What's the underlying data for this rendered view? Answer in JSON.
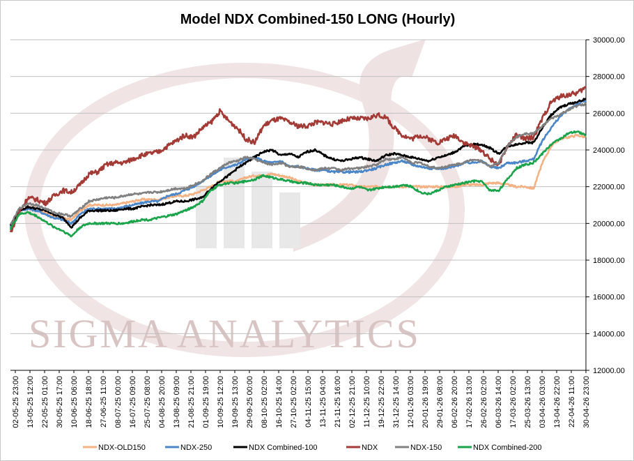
{
  "chart_data": {
    "type": "line",
    "title": "Model NDX Combined-150 LONG (Hourly)",
    "watermark": "Sigma Analytics",
    "ylim": [
      12000,
      30000
    ],
    "y_ticks": [
      "12000.00",
      "14000.00",
      "16000.00",
      "18000.00",
      "20000.00",
      "22000.00",
      "24000.00",
      "26000.00",
      "28000.00",
      "30000.00"
    ],
    "x_ticks": [
      "02-05-25 23:00",
      "13-05-25 12:00",
      "22-05-25 01:00",
      "30-05-25 17:00",
      "10-06-25 06:00",
      "18-06-25 18:00",
      "27-06-25 11:00",
      "08-07-25 00:00",
      "16-07-25 09:00",
      "25-07-25 08:00",
      "04-08-25 20:00",
      "13-08-25 09:00",
      "21-08-25 21:00",
      "01-09-25 19:00",
      "10-09-25 12:00",
      "19-09-25 13:00",
      "29-09-25 00:00",
      "08-10-25 02:00",
      "16-10-25 14:00",
      "27-10-25 02:00",
      "04-11-25 15:00",
      "13-11-25 04:00",
      "21-11-25 16:00",
      "02-12-25 21:00",
      "11-12-25 10:00",
      "19-12-25 22:00",
      "31-12-25 14:00",
      "12-01-26 03:00",
      "20-01-26 19:00",
      "29-01-26 08:00",
      "06-02-26 20:00",
      "17-02-26 13:00",
      "26-02-26 02:00",
      "06-03-26 14:00",
      "17-03-26 02:00",
      "25-03-26 13:00",
      "03-04-26 03:00",
      "13-04-26 22:00",
      "22-04-26 11:00",
      "30-04-26 23:00"
    ],
    "series": [
      {
        "name": "NDX-OLD150",
        "color": "#f4b183",
        "values": [
          19900,
          20700,
          20900,
          20800,
          20600,
          20400,
          20300,
          20200,
          20700,
          21000,
          21000,
          21000,
          21000,
          21100,
          21200,
          21300,
          21300,
          21300,
          21400,
          21500,
          21500,
          21600,
          21800,
          22000,
          22300,
          22300,
          22300,
          22500,
          22600,
          22600,
          22700,
          22600,
          22500,
          22300,
          22200,
          22100,
          22100,
          22100,
          22100,
          22100,
          22000,
          22000,
          22000,
          22000,
          22000,
          22000,
          22000,
          22000,
          22000,
          22000,
          22000,
          22000,
          22100,
          22100,
          22100,
          22200,
          22200,
          22100,
          22000,
          22000,
          21900,
          23300,
          24200,
          24600,
          24700,
          24800,
          24700
        ]
      },
      {
        "name": "NDX-250",
        "color": "#4a86c8",
        "values": [
          19800,
          20700,
          20800,
          20700,
          20500,
          20300,
          20200,
          20000,
          20500,
          20800,
          20800,
          20800,
          20800,
          20900,
          21000,
          21100,
          21200,
          21200,
          21500,
          21600,
          21800,
          22000,
          22300,
          22600,
          22900,
          23100,
          23200,
          23500,
          23600,
          23400,
          23300,
          23400,
          23100,
          23100,
          23000,
          22900,
          22900,
          22800,
          22800,
          22800,
          22800,
          22900,
          23000,
          23200,
          23300,
          23400,
          23200,
          23100,
          23000,
          23000,
          23000,
          23100,
          23300,
          23300,
          23400,
          23100,
          23000,
          23300,
          23300,
          23400,
          23500,
          24500,
          25200,
          25800,
          26200,
          26500,
          26700
        ]
      },
      {
        "name": "NDX Combined-100",
        "color": "#000000",
        "values": [
          19900,
          20700,
          20900,
          20800,
          20700,
          20500,
          20300,
          19800,
          20300,
          20700,
          20700,
          20700,
          20700,
          20800,
          20800,
          20900,
          21000,
          21000,
          21100,
          21200,
          21200,
          21300,
          21400,
          21900,
          22300,
          22600,
          23000,
          23300,
          23600,
          23900,
          24000,
          23700,
          23800,
          23600,
          23900,
          24000,
          23700,
          23500,
          23400,
          23500,
          23600,
          23500,
          23400,
          23700,
          23800,
          23700,
          23600,
          23500,
          23400,
          23600,
          23700,
          23900,
          24200,
          24300,
          24300,
          24100,
          23800,
          24200,
          24300,
          24400,
          24400,
          25200,
          25900,
          26300,
          26500,
          26600,
          26800
        ]
      },
      {
        "name": "NDX",
        "color": "#a33a35",
        "values": [
          19500,
          20600,
          21400,
          21300,
          21100,
          21500,
          21800,
          21700,
          22100,
          22700,
          22800,
          23200,
          23300,
          23300,
          23500,
          23700,
          23800,
          23900,
          24200,
          24500,
          24800,
          24700,
          25200,
          25500,
          26100,
          25600,
          25200,
          24600,
          24400,
          25300,
          25600,
          25700,
          25500,
          25300,
          25300,
          25500,
          25500,
          25400,
          25600,
          25700,
          25700,
          25700,
          25900,
          25800,
          25200,
          24800,
          24600,
          24800,
          24600,
          24400,
          24600,
          24800,
          24400,
          24200,
          24000,
          23500,
          23200,
          24200,
          24800,
          24600,
          24700,
          25700,
          26600,
          26900,
          27000,
          27100,
          27400
        ]
      },
      {
        "name": "NDX-150",
        "color": "#808080",
        "values": [
          19900,
          20800,
          21100,
          21000,
          20800,
          20600,
          20500,
          20400,
          20800,
          21200,
          21300,
          21400,
          21400,
          21500,
          21600,
          21600,
          21700,
          21700,
          21800,
          21900,
          21900,
          22100,
          22300,
          22700,
          23000,
          23300,
          23400,
          23600,
          23500,
          23300,
          23200,
          23300,
          23100,
          23100,
          23000,
          22900,
          23000,
          23000,
          22900,
          23000,
          23000,
          23100,
          23200,
          23500,
          23500,
          23600,
          23300,
          23300,
          23100,
          23000,
          23100,
          23200,
          23300,
          23500,
          23400,
          23100,
          23300,
          24200,
          24700,
          24900,
          24900,
          25300,
          25700,
          25900,
          26200,
          26400,
          26500
        ]
      },
      {
        "name": "NDX Combined-200",
        "color": "#1aa34a",
        "values": [
          19700,
          20500,
          20600,
          20400,
          20100,
          19800,
          19600,
          19300,
          19800,
          20000,
          20000,
          20000,
          20000,
          20000,
          20100,
          20200,
          20200,
          20300,
          20400,
          20500,
          20700,
          20900,
          21200,
          21800,
          22100,
          22200,
          22200,
          22300,
          22400,
          22600,
          22500,
          22400,
          22300,
          22200,
          22200,
          22100,
          22100,
          22100,
          22000,
          21900,
          22000,
          21800,
          21900,
          22000,
          22000,
          22100,
          22000,
          21700,
          21600,
          21800,
          22000,
          22100,
          22200,
          22300,
          22300,
          21800,
          21800,
          22400,
          23000,
          23200,
          23300,
          23800,
          24300,
          24600,
          24900,
          25000,
          24800
        ]
      }
    ],
    "legend_position": "bottom"
  }
}
